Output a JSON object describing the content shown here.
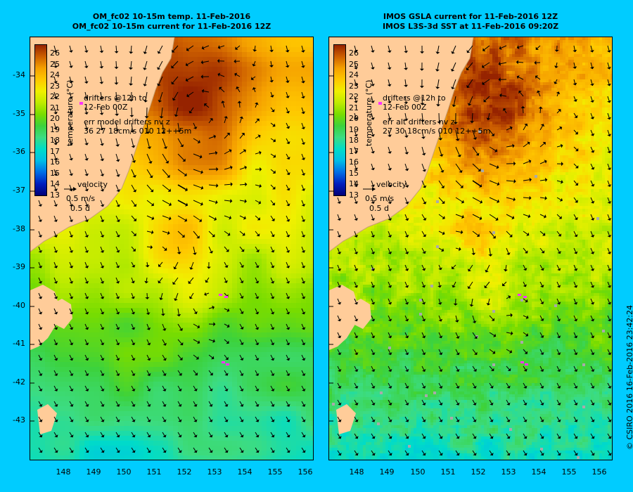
{
  "left_panel": {
    "title_line1": "OM_fc02 10-15m temp. 11-Feb-2016",
    "title_line2": "OM_fc02 10-15m current for 11-Feb-2016 12Z",
    "annotation_drifters_1": "drifters @12h to",
    "annotation_drifters_2": "12-Feb 00Z",
    "annotation_err_1": "err model drifters nv z",
    "annotation_err_2": "36 27 18cm/s 010 12++5m",
    "velocity_label": "velocity",
    "velocity_scale": "0.5 m/s",
    "velocity_days": "0.5 d"
  },
  "right_panel": {
    "title_line1": "IMOS GSLA current for 11-Feb-2016 12Z",
    "title_line2": "IMOS L3S-3d SST at 11-Feb-2016 09:20Z",
    "annotation_drifters_1": "drifters @12h to",
    "annotation_drifters_2": "12-Feb 00Z",
    "annotation_err_1": "err alt drifters nv z",
    "annotation_err_2": "27 30 18cm/s 010 12++5m",
    "velocity_label": "velocity",
    "velocity_scale": "0.5 m/s",
    "velocity_days": "0.5 d"
  },
  "colorbar": {
    "labels": [
      "26",
      "25",
      "24",
      "23",
      "22",
      "21",
      "20",
      "19",
      "18",
      "17",
      "16",
      "15",
      "14",
      "13"
    ],
    "unit": "temperature (°C)"
  },
  "axes": {
    "y_ticks": [
      "-34",
      "-35",
      "-36",
      "-37",
      "-38",
      "-39",
      "-40",
      "-41",
      "-42",
      "-43"
    ],
    "x_ticks": [
      "148",
      "149",
      "150",
      "151",
      "152",
      "153",
      "154",
      "155",
      "156"
    ]
  },
  "copyright": "© CSIRO 2016   16-Feb-2016 23:42:24",
  "colors": {
    "background": "#00ccff",
    "land": "#ffcc99",
    "drifter": "#ff33ff"
  }
}
